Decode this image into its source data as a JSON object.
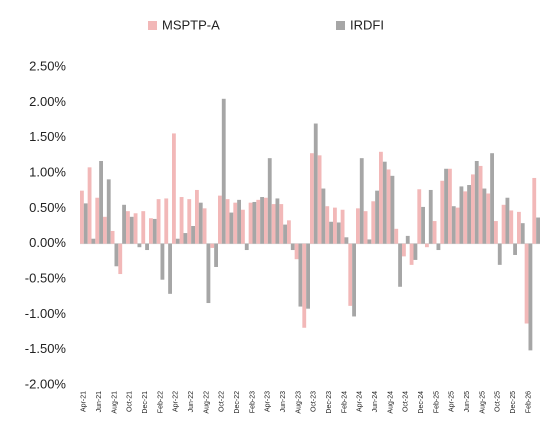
{
  "chart_data": {
    "type": "bar",
    "categories": [
      "Apr-21",
      null,
      "Jun-21",
      null,
      "Aug-21",
      null,
      "Oct-21",
      null,
      "Dec-21",
      null,
      "Feb-22",
      null,
      "Apr-22",
      null,
      "Jun-22",
      null,
      "Aug-22",
      null,
      "Oct-22",
      null,
      "Dec-22",
      null,
      "Feb-23",
      null,
      "Apr-23",
      null,
      "Jun-23",
      null,
      "Aug-23",
      null,
      "Oct-23",
      null,
      "Dec-23",
      null,
      "Feb-24",
      null,
      "Apr-24",
      null,
      "Jun-24",
      null,
      "Aug-24",
      null,
      "Oct-24",
      null,
      "Dec-24",
      null,
      "Feb-25",
      null,
      "Apr-25",
      null,
      "Jun-25",
      null,
      "Aug-25",
      null,
      "Oct-25",
      null,
      "Dec-25",
      null,
      "Feb-26",
      null
    ],
    "series": [
      {
        "name": "MSPTP-A",
        "color": "#f2b8b8",
        "values": [
          0.75,
          1.08,
          0.65,
          0.38,
          0.18,
          -0.43,
          0.46,
          0.43,
          0.46,
          0.36,
          0.63,
          0.64,
          1.56,
          0.66,
          0.63,
          0.76,
          0.5,
          -0.06,
          0.68,
          0.63,
          0.58,
          0.48,
          0.58,
          0.62,
          0.65,
          0.56,
          0.56,
          0.33,
          -0.22,
          -1.19,
          1.28,
          1.25,
          0.53,
          0.51,
          0.48,
          -0.88,
          0.5,
          0.46,
          0.6,
          1.3,
          1.05,
          0.21,
          -0.18,
          -0.3,
          0.77,
          -0.05,
          0.32,
          0.89,
          1.06,
          0.51,
          0.74,
          0.98,
          1.1,
          0.71,
          0.32,
          0.55,
          0.47,
          0.45,
          -1.13,
          0.93
        ]
      },
      {
        "name": "IRDFI",
        "color": "#a6a6a6",
        "values": [
          0.57,
          0.07,
          1.17,
          0.91,
          -0.32,
          0.55,
          0.38,
          -0.05,
          -0.09,
          0.35,
          -0.51,
          -0.71,
          0.07,
          0.15,
          0.25,
          0.58,
          -0.84,
          -0.33,
          2.05,
          0.44,
          0.62,
          -0.09,
          0.59,
          0.66,
          1.21,
          0.64,
          0.27,
          -0.09,
          -0.89,
          -0.92,
          1.7,
          0.78,
          0.31,
          0.3,
          0.09,
          -1.03,
          1.21,
          0.06,
          0.75,
          1.16,
          0.96,
          -0.61,
          0.11,
          -0.23,
          0.52,
          0.76,
          -0.09,
          1.06,
          0.53,
          0.81,
          0.83,
          1.17,
          0.78,
          1.28,
          -0.3,
          0.65,
          -0.16,
          0.29,
          -1.51,
          0.37
        ]
      }
    ],
    "ylim": [
      -2,
      2.5
    ],
    "yticks": [
      {
        "value": 2.5,
        "label": "2.50%"
      },
      {
        "value": 2,
        "label": "2.00%"
      },
      {
        "value": 1.5,
        "label": "1.50%"
      },
      {
        "value": 1,
        "label": "1.00%"
      },
      {
        "value": 0.5,
        "label": "0.50%"
      },
      {
        "value": 0,
        "label": "0.00%"
      },
      {
        "value": -0.5,
        "label": "-0.50%"
      },
      {
        "value": -1,
        "label": "-1.00%"
      },
      {
        "value": -1.5,
        "label": "-1.50%"
      },
      {
        "value": -2,
        "label": "-2.00%"
      }
    ],
    "legend": "top"
  }
}
